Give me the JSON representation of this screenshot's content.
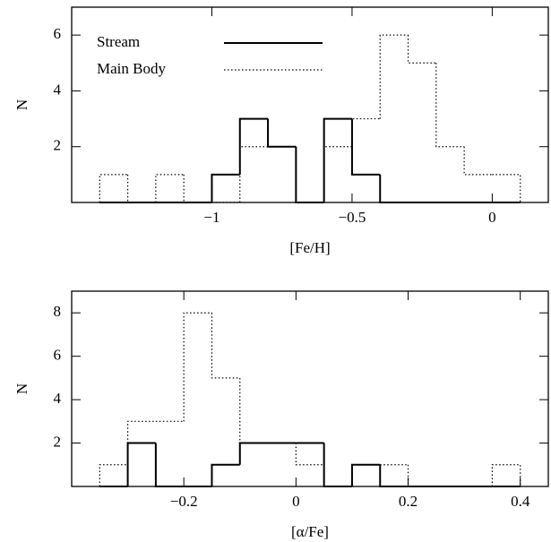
{
  "chart_data": [
    {
      "type": "histogram",
      "xlabel": "[Fe/H]",
      "ylabel": "N",
      "bins": [
        -1.4,
        -1.3,
        -1.2,
        -1.1,
        -1.0,
        -0.9,
        -0.8,
        -0.7,
        -0.6,
        -0.5,
        -0.4,
        -0.3,
        -0.2,
        -0.1,
        0,
        0.1
      ],
      "series": [
        {
          "name": "Stream",
          "color": "#000000",
          "line_style": "solid",
          "values": [
            0,
            0,
            0,
            0,
            1,
            3,
            2,
            0,
            3,
            1,
            0,
            0,
            0,
            0,
            0
          ]
        },
        {
          "name": "Main Body",
          "color": "#000000",
          "line_style": "dotted",
          "values": [
            1,
            0,
            1,
            0,
            0,
            2,
            2,
            0,
            2,
            3,
            6,
            5,
            2,
            1,
            1
          ]
        }
      ],
      "xlim": [
        -1.5,
        0.2
      ],
      "ylim": [
        0,
        7
      ],
      "xticks": [
        {
          "value": -1,
          "label": "−1"
        },
        {
          "value": -0.5,
          "label": "−0.5"
        },
        0
      ],
      "yticks": [
        2,
        4,
        6
      ],
      "legend": "upper left"
    },
    {
      "type": "histogram",
      "xlabel": "[α/Fe]",
      "ylabel": "N",
      "bins": [
        -0.35,
        -0.3,
        -0.25,
        -0.2,
        -0.15,
        -0.1,
        -0.05,
        0,
        0.05,
        0.1,
        0.15,
        0.2,
        0.25,
        0.3,
        0.35,
        0.4
      ],
      "series": [
        {
          "name": "Stream",
          "color": "#000000",
          "line_style": "solid",
          "values": [
            0,
            2,
            0,
            0,
            1,
            2,
            2,
            2,
            0,
            1,
            0,
            0,
            0,
            0,
            0
          ]
        },
        {
          "name": "Main Body",
          "color": "#000000",
          "line_style": "dotted",
          "values": [
            1,
            3,
            3,
            8,
            5,
            2,
            2,
            1,
            0,
            1,
            1,
            0,
            0,
            0,
            1
          ]
        }
      ],
      "xlim": [
        -0.4,
        0.45
      ],
      "ylim": [
        0,
        9
      ],
      "xticks": [
        {
          "value": -0.2,
          "label": "−0.2"
        },
        0,
        0.2,
        0.4
      ],
      "yticks": [
        2,
        4,
        6,
        8
      ]
    }
  ]
}
